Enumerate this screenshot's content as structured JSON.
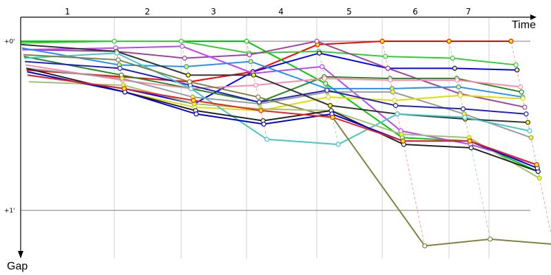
{
  "chart_data": {
    "type": "line",
    "xlabel": "Time",
    "ylabel": "Gap",
    "lap_labels": [
      "1",
      "2",
      "3",
      "4",
      "5",
      "6",
      "7"
    ],
    "y_ticks": [
      {
        "value": 0,
        "label": "+0'"
      },
      {
        "value": 1,
        "label": "+1'"
      }
    ],
    "y_unit": "minutes",
    "ylim": [
      0,
      1.28
    ],
    "grid": true,
    "laps": [
      0,
      1,
      2,
      3,
      4,
      5,
      6,
      7
    ],
    "series": [
      {
        "color": "#ff0000",
        "gaps": [
          0.17,
          0.21,
          0.24,
          0.18,
          0.02,
          0,
          0,
          0
        ]
      },
      {
        "color": "#00c800",
        "gaps": [
          0,
          0,
          0,
          0,
          0.25,
          0.57,
          0.59,
          0.77
        ]
      },
      {
        "color": "#33cc33",
        "gaps": [
          0.01,
          0,
          0,
          0.07,
          0.06,
          0.09,
          0.1,
          0.14
        ]
      },
      {
        "color": "#0000ff",
        "gaps": [
          0.2,
          0.28,
          0.37,
          0.18,
          0.07,
          0.16,
          0.16,
          0.17
        ]
      },
      {
        "color": "#a040a0",
        "gaps": [
          0.05,
          0.06,
          0.1,
          0.08,
          0,
          0.16,
          0.31,
          0.39
        ]
      },
      {
        "color": "#c040ff",
        "gaps": [
          0.05,
          0.04,
          0.03,
          0.19,
          0.15,
          0.53,
          0.61,
          0.73
        ]
      },
      {
        "color": "#1e90ff",
        "gaps": [
          0.04,
          0.14,
          0.15,
          0.12,
          0.28,
          0.28,
          0.27,
          0.33
        ]
      },
      {
        "color": "#228b22",
        "gaps": [
          0.09,
          0.2,
          0.28,
          0.36,
          0.21,
          0.22,
          0.22,
          0.3
        ]
      },
      {
        "color": "#ff88aa",
        "gaps": [
          0.14,
          0.23,
          0.28,
          0.26,
          0.22,
          0.23,
          0.23,
          0.27
        ]
      },
      {
        "color": "#999999",
        "gaps": [
          0.16,
          0.22,
          0.33,
          0.37,
          0.3,
          0.3,
          0.43,
          0.57
        ]
      },
      {
        "color": "#dddd00",
        "gaps": [
          0.18,
          0.3,
          0.39,
          0.41,
          0.33,
          0.35,
          0.32,
          0.34
        ]
      },
      {
        "color": "#2020c0",
        "gaps": [
          0.12,
          0.16,
          0.26,
          0.36,
          0.29,
          0.38,
          0.4,
          0.43
        ]
      },
      {
        "color": "#333333",
        "gaps": [
          0.02,
          0.06,
          0.2,
          0.2,
          0.38,
          0.43,
          0.46,
          0.48
        ]
      },
      {
        "color": "#40c8c8",
        "gaps": [
          0.1,
          0.07,
          0.28,
          0.58,
          0.61,
          0.43,
          0.45,
          0.53
        ]
      },
      {
        "color": "#808040",
        "gaps": [
          0.08,
          0.11,
          0.24,
          0.33,
          0.45,
          1.21,
          1.17,
          1.2
        ]
      },
      {
        "color": "#a0c070",
        "gaps": [
          0.24,
          0.26,
          0.37,
          0.4,
          0.41,
          0.55,
          0.57,
          0.81
        ]
      },
      {
        "color": "#222222",
        "gaps": [
          0.16,
          0.3,
          0.41,
          0.47,
          0.41,
          0.61,
          0.63,
          0.77
        ]
      },
      {
        "color": "#0000dd",
        "gaps": [
          0.18,
          0.3,
          0.43,
          0.49,
          0.43,
          0.59,
          0.59,
          0.75
        ]
      },
      {
        "color": "#ee2222",
        "gaps": [
          0.2,
          0.28,
          0.35,
          0.41,
          0.45,
          0.59,
          0.59,
          0.73
        ]
      }
    ]
  }
}
